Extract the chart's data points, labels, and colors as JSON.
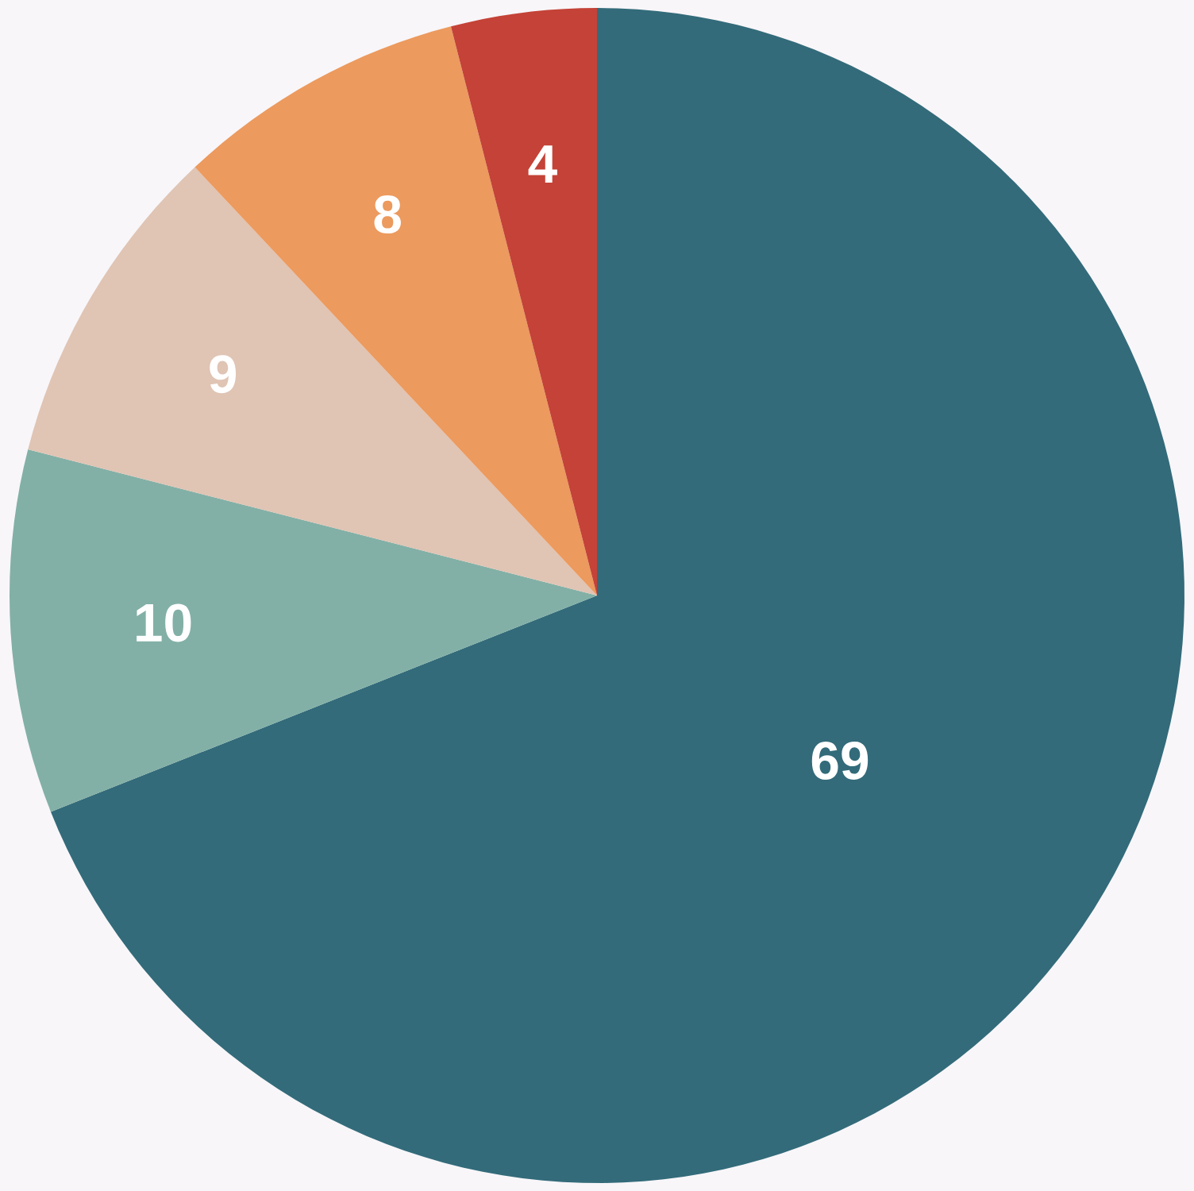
{
  "chart_data": {
    "type": "pie",
    "categories": [
      null,
      null,
      null,
      null,
      null
    ],
    "values": [
      69,
      10,
      9,
      8,
      4
    ],
    "colors": [
      "#336b7a",
      "#82b0a6",
      "#e0c4b4",
      "#ec9a5e",
      "#c44237"
    ],
    "data_labels": true
  }
}
